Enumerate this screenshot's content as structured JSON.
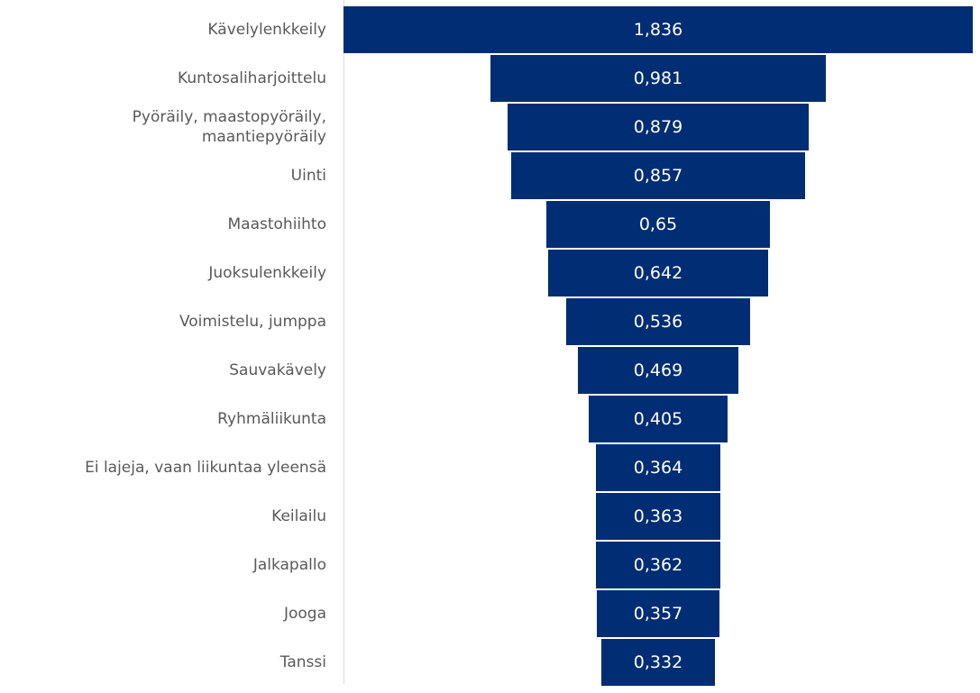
{
  "chart_data": {
    "type": "funnel",
    "categories": [
      "Kävelylenkkeily",
      "Kuntosaliharjoittelu",
      "Pyöräily, maastopyöräily, maantiepyöräily",
      "Uinti",
      "Maastohiihto",
      "Juoksulenkkeily",
      "Voimistelu, jumppa",
      "Sauvakävely",
      "Ryhmäliikunta",
      "Ei lajeja, vaan liikuntaa yleensä",
      "Keilailu",
      "Jalkapallo",
      "Jooga",
      "Tanssi"
    ],
    "values": [
      1.836,
      0.981,
      0.879,
      0.857,
      0.65,
      0.642,
      0.536,
      0.469,
      0.405,
      0.364,
      0.363,
      0.362,
      0.357,
      0.332
    ],
    "value_labels": [
      "1,836",
      "0,981",
      "0,879",
      "0,857",
      "0,65",
      "0,642",
      "0,536",
      "0,469",
      "0,405",
      "0,364",
      "0,363",
      "0,362",
      "0,357",
      "0,332"
    ],
    "color": "#002d74"
  }
}
